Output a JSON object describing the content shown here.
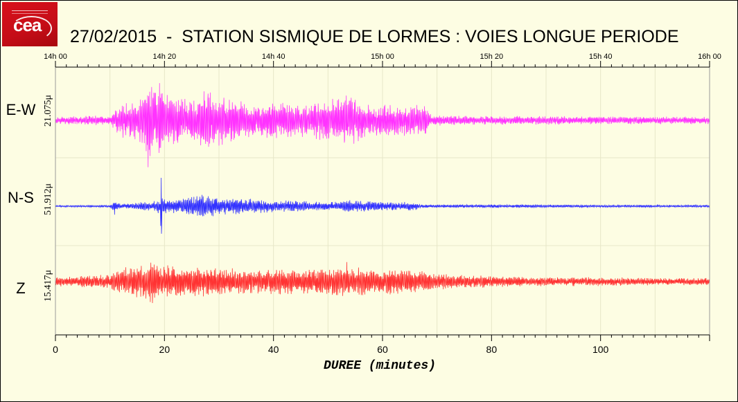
{
  "header": {
    "logo_text": "cea",
    "title": "27/02/2015  -  STATION SISMIQUE DE LORMES : VOIES LONGUE PERIODE"
  },
  "colors": {
    "background": "#fdfde3",
    "grid": "#e6e6c8",
    "ew": "#ff33ff",
    "ns": "#3333ff",
    "z": "#ff3333"
  },
  "chart_data": {
    "type": "line",
    "title": "27/02/2015  -  STATION SISMIQUE DE LORMES : VOIES LONGUE PERIODE",
    "xlabel": "DUREE (minutes)",
    "ylabel": "",
    "xlim": [
      0,
      120
    ],
    "x_ticks": [
      0,
      20,
      40,
      60,
      80,
      100
    ],
    "top_axis_ticks": [
      "14h 00",
      "14h 20",
      "14h 40",
      "15h 00",
      "15h 20",
      "15h 40",
      "16h 00"
    ],
    "grid": true,
    "legend": "none",
    "series": [
      {
        "name": "E-W",
        "scale": "21.075μ",
        "color": "#ff33ff",
        "envelope_x": [
          0,
          10,
          12.5,
          13.5,
          16,
          17,
          18.5,
          19.5,
          21,
          25,
          28,
          29,
          32,
          36,
          40,
          46,
          52,
          54,
          56,
          62,
          68,
          69,
          80,
          90,
          100,
          110,
          120
        ],
        "envelope_amp": [
          0.07,
          0.09,
          0.35,
          0.3,
          0.45,
          0.9,
          0.55,
          0.8,
          0.45,
          0.4,
          0.6,
          0.5,
          0.4,
          0.3,
          0.35,
          0.3,
          0.45,
          0.5,
          0.35,
          0.3,
          0.28,
          0.1,
          0.08,
          0.08,
          0.07,
          0.07,
          0.07
        ],
        "spikes": [
          {
            "x": 17.0,
            "amp": 0.95
          },
          {
            "x": 19.5,
            "amp": 0.82
          },
          {
            "x": 28.5,
            "amp": 0.6
          },
          {
            "x": 53.5,
            "amp": 0.55
          }
        ]
      },
      {
        "name": "N-S",
        "scale": "51.912μ",
        "color": "#3333ff",
        "envelope_x": [
          0,
          10,
          10.8,
          12,
          18,
          19.4,
          20.5,
          24,
          27,
          28,
          32,
          40,
          46,
          50,
          55,
          60,
          66,
          67,
          80,
          90,
          100,
          120
        ],
        "envelope_amp": [
          0.02,
          0.03,
          0.15,
          0.05,
          0.12,
          0.25,
          0.15,
          0.2,
          0.3,
          0.25,
          0.2,
          0.15,
          0.12,
          0.1,
          0.15,
          0.1,
          0.1,
          0.04,
          0.04,
          0.04,
          0.03,
          0.03
        ],
        "spikes": [
          {
            "x": 19.4,
            "amp": 1.0
          },
          {
            "x": 27.0,
            "amp": 0.6
          },
          {
            "x": 10.8,
            "amp": 0.2
          }
        ]
      },
      {
        "name": "Z",
        "scale": "15.417μ",
        "color": "#ff3333",
        "envelope_x": [
          0,
          4,
          10,
          13,
          16,
          18,
          20,
          24,
          28,
          32,
          40,
          45,
          50,
          54,
          58,
          62,
          66,
          72,
          80,
          90,
          100,
          110,
          120
        ],
        "envelope_amp": [
          0.12,
          0.15,
          0.2,
          0.4,
          0.45,
          0.6,
          0.45,
          0.4,
          0.4,
          0.35,
          0.35,
          0.35,
          0.4,
          0.45,
          0.3,
          0.35,
          0.3,
          0.2,
          0.15,
          0.12,
          0.12,
          0.1,
          0.1
        ],
        "spikes": [
          {
            "x": 13.0,
            "amp": 0.5
          },
          {
            "x": 17.8,
            "amp": 0.95
          },
          {
            "x": 24.2,
            "amp": 0.55
          },
          {
            "x": 53.5,
            "amp": 0.55
          }
        ]
      }
    ]
  }
}
